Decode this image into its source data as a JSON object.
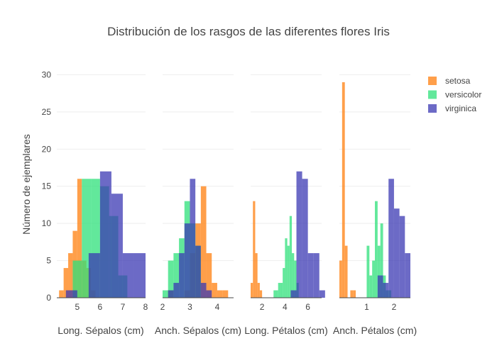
{
  "chart_data": {
    "type": "histogram",
    "title": "Distribución de los rasgos de las diferentes flores Iris",
    "ylabel": "Número de ejemplares",
    "ylim": [
      0,
      31
    ],
    "yticks": [
      0,
      5,
      10,
      15,
      20,
      25,
      30
    ],
    "legend": {
      "position": "right",
      "items": [
        {
          "name": "setosa",
          "color": "#ff7f0e"
        },
        {
          "name": "versicolor",
          "color": "#2ee07a"
        },
        {
          "name": "virginica",
          "color": "#3b38b3"
        }
      ]
    },
    "panels": [
      {
        "xlabel": "Long. Sépalos (cm)",
        "xlim": [
          4.1,
          8.0
        ],
        "xticks": [
          {
            "v": 5,
            "label": "5"
          },
          {
            "v": 6,
            "label": "6"
          },
          {
            "v": 7,
            "label": "7"
          },
          {
            "v": 8,
            "label": "8"
          }
        ],
        "series": [
          {
            "name": "setosa",
            "bins": [
              [
                4.2,
                4.4,
                1
              ],
              [
                4.4,
                4.6,
                4
              ],
              [
                4.6,
                4.8,
                6
              ],
              [
                4.8,
                5.0,
                9
              ],
              [
                5.0,
                5.2,
                16
              ],
              [
                5.2,
                5.4,
                5
              ],
              [
                5.4,
                5.6,
                4
              ],
              [
                5.6,
                5.8,
                1
              ]
            ]
          },
          {
            "name": "versicolor",
            "bins": [
              [
                4.8,
                5.2,
                5
              ],
              [
                5.2,
                5.6,
                16
              ],
              [
                5.6,
                6.0,
                16
              ],
              [
                6.0,
                6.4,
                15
              ],
              [
                6.4,
                6.8,
                11
              ],
              [
                6.8,
                7.2,
                3
              ]
            ]
          },
          {
            "name": "virginica",
            "bins": [
              [
                4.5,
                5.0,
                1
              ],
              [
                5.0,
                5.5,
                0
              ],
              [
                5.5,
                6.0,
                6
              ],
              [
                6.0,
                6.5,
                17
              ],
              [
                6.5,
                7.0,
                14
              ],
              [
                7.0,
                7.5,
                6
              ],
              [
                7.5,
                8.0,
                6
              ]
            ]
          }
        ]
      },
      {
        "xlabel": "Anch. Sépalos (cm)",
        "xlim": [
          2.0,
          4.6
        ],
        "xticks": [
          {
            "v": 2,
            "label": "2"
          },
          {
            "v": 3,
            "label": "3"
          },
          {
            "v": 4,
            "label": "4"
          }
        ],
        "series": [
          {
            "name": "setosa",
            "bins": [
              [
                2.2,
                2.4,
                1
              ],
              [
                2.4,
                2.6,
                0
              ],
              [
                2.6,
                2.8,
                0
              ],
              [
                2.8,
                3.0,
                1
              ],
              [
                3.0,
                3.2,
                6
              ],
              [
                3.2,
                3.4,
                10
              ],
              [
                3.4,
                3.6,
                15
              ],
              [
                3.6,
                3.8,
                6
              ],
              [
                3.8,
                4.0,
                2
              ],
              [
                4.0,
                4.2,
                1
              ],
              [
                4.2,
                4.4,
                1
              ]
            ]
          },
          {
            "name": "versicolor",
            "bins": [
              [
                2.0,
                2.2,
                1
              ],
              [
                2.2,
                2.4,
                5
              ],
              [
                2.4,
                2.6,
                6
              ],
              [
                2.6,
                2.8,
                8
              ],
              [
                2.8,
                3.0,
                13
              ],
              [
                3.0,
                3.2,
                10
              ],
              [
                3.2,
                3.4,
                7
              ],
              [
                3.4,
                3.6,
                0
              ]
            ]
          },
          {
            "name": "virginica",
            "bins": [
              [
                2.2,
                2.4,
                1
              ],
              [
                2.4,
                2.6,
                2
              ],
              [
                2.6,
                2.8,
                6
              ],
              [
                2.8,
                3.0,
                10
              ],
              [
                3.0,
                3.2,
                16
              ],
              [
                3.2,
                3.4,
                7
              ],
              [
                3.4,
                3.6,
                2
              ],
              [
                3.6,
                3.8,
                1
              ]
            ]
          }
        ]
      },
      {
        "xlabel": "Long. Pétalos (cm)",
        "xlim": [
          1.0,
          7.2
        ],
        "xticks": [
          {
            "v": 2,
            "label": "2"
          },
          {
            "v": 4,
            "label": "4"
          },
          {
            "v": 6,
            "label": "6"
          }
        ],
        "series": [
          {
            "name": "setosa",
            "bins": [
              [
                1.0,
                1.2,
                2
              ],
              [
                1.2,
                1.4,
                13
              ],
              [
                1.4,
                1.6,
                6
              ],
              [
                1.6,
                1.8,
                2
              ],
              [
                1.8,
                2.0,
                1
              ]
            ]
          },
          {
            "name": "versicolor",
            "bins": [
              [
                3.0,
                3.2,
                1
              ],
              [
                3.2,
                3.4,
                1
              ],
              [
                3.4,
                3.6,
                2
              ],
              [
                3.6,
                3.8,
                2
              ],
              [
                3.8,
                4.0,
                4
              ],
              [
                4.0,
                4.2,
                8
              ],
              [
                4.2,
                4.4,
                7
              ],
              [
                4.4,
                4.6,
                11
              ],
              [
                4.6,
                4.8,
                6
              ],
              [
                4.8,
                5.0,
                5
              ],
              [
                5.0,
                5.2,
                2
              ]
            ]
          },
          {
            "name": "virginica",
            "bins": [
              [
                4.5,
                5.0,
                1
              ],
              [
                5.0,
                5.5,
                17
              ],
              [
                5.5,
                6.0,
                16
              ],
              [
                6.0,
                6.5,
                6
              ],
              [
                6.5,
                7.0,
                6
              ],
              [
                7.0,
                7.5,
                1
              ]
            ]
          }
        ]
      },
      {
        "xlabel": "Anch. Pétalos (cm)",
        "xlim": [
          0.0,
          2.6
        ],
        "xticks": [
          {
            "v": 1,
            "label": "1"
          },
          {
            "v": 2,
            "label": "2"
          }
        ],
        "series": [
          {
            "name": "setosa",
            "bins": [
              [
                0.0,
                0.1,
                5
              ],
              [
                0.1,
                0.2,
                29
              ],
              [
                0.2,
                0.3,
                7
              ],
              [
                0.3,
                0.4,
                0
              ],
              [
                0.4,
                0.5,
                1
              ],
              [
                0.5,
                0.6,
                1
              ]
            ]
          },
          {
            "name": "versicolor",
            "bins": [
              [
                1.0,
                1.1,
                7
              ],
              [
                1.1,
                1.2,
                3
              ],
              [
                1.2,
                1.3,
                5
              ],
              [
                1.3,
                1.4,
                13
              ],
              [
                1.4,
                1.5,
                7
              ],
              [
                1.5,
                1.6,
                10
              ],
              [
                1.6,
                1.7,
                3
              ],
              [
                1.7,
                1.8,
                1
              ],
              [
                1.8,
                1.9,
                1
              ]
            ]
          },
          {
            "name": "virginica",
            "bins": [
              [
                1.4,
                1.6,
                3
              ],
              [
                1.6,
                1.8,
                2
              ],
              [
                1.8,
                2.0,
                16
              ],
              [
                2.0,
                2.2,
                12
              ],
              [
                2.2,
                2.4,
                11
              ],
              [
                2.4,
                2.6,
                6
              ]
            ]
          }
        ]
      }
    ]
  }
}
